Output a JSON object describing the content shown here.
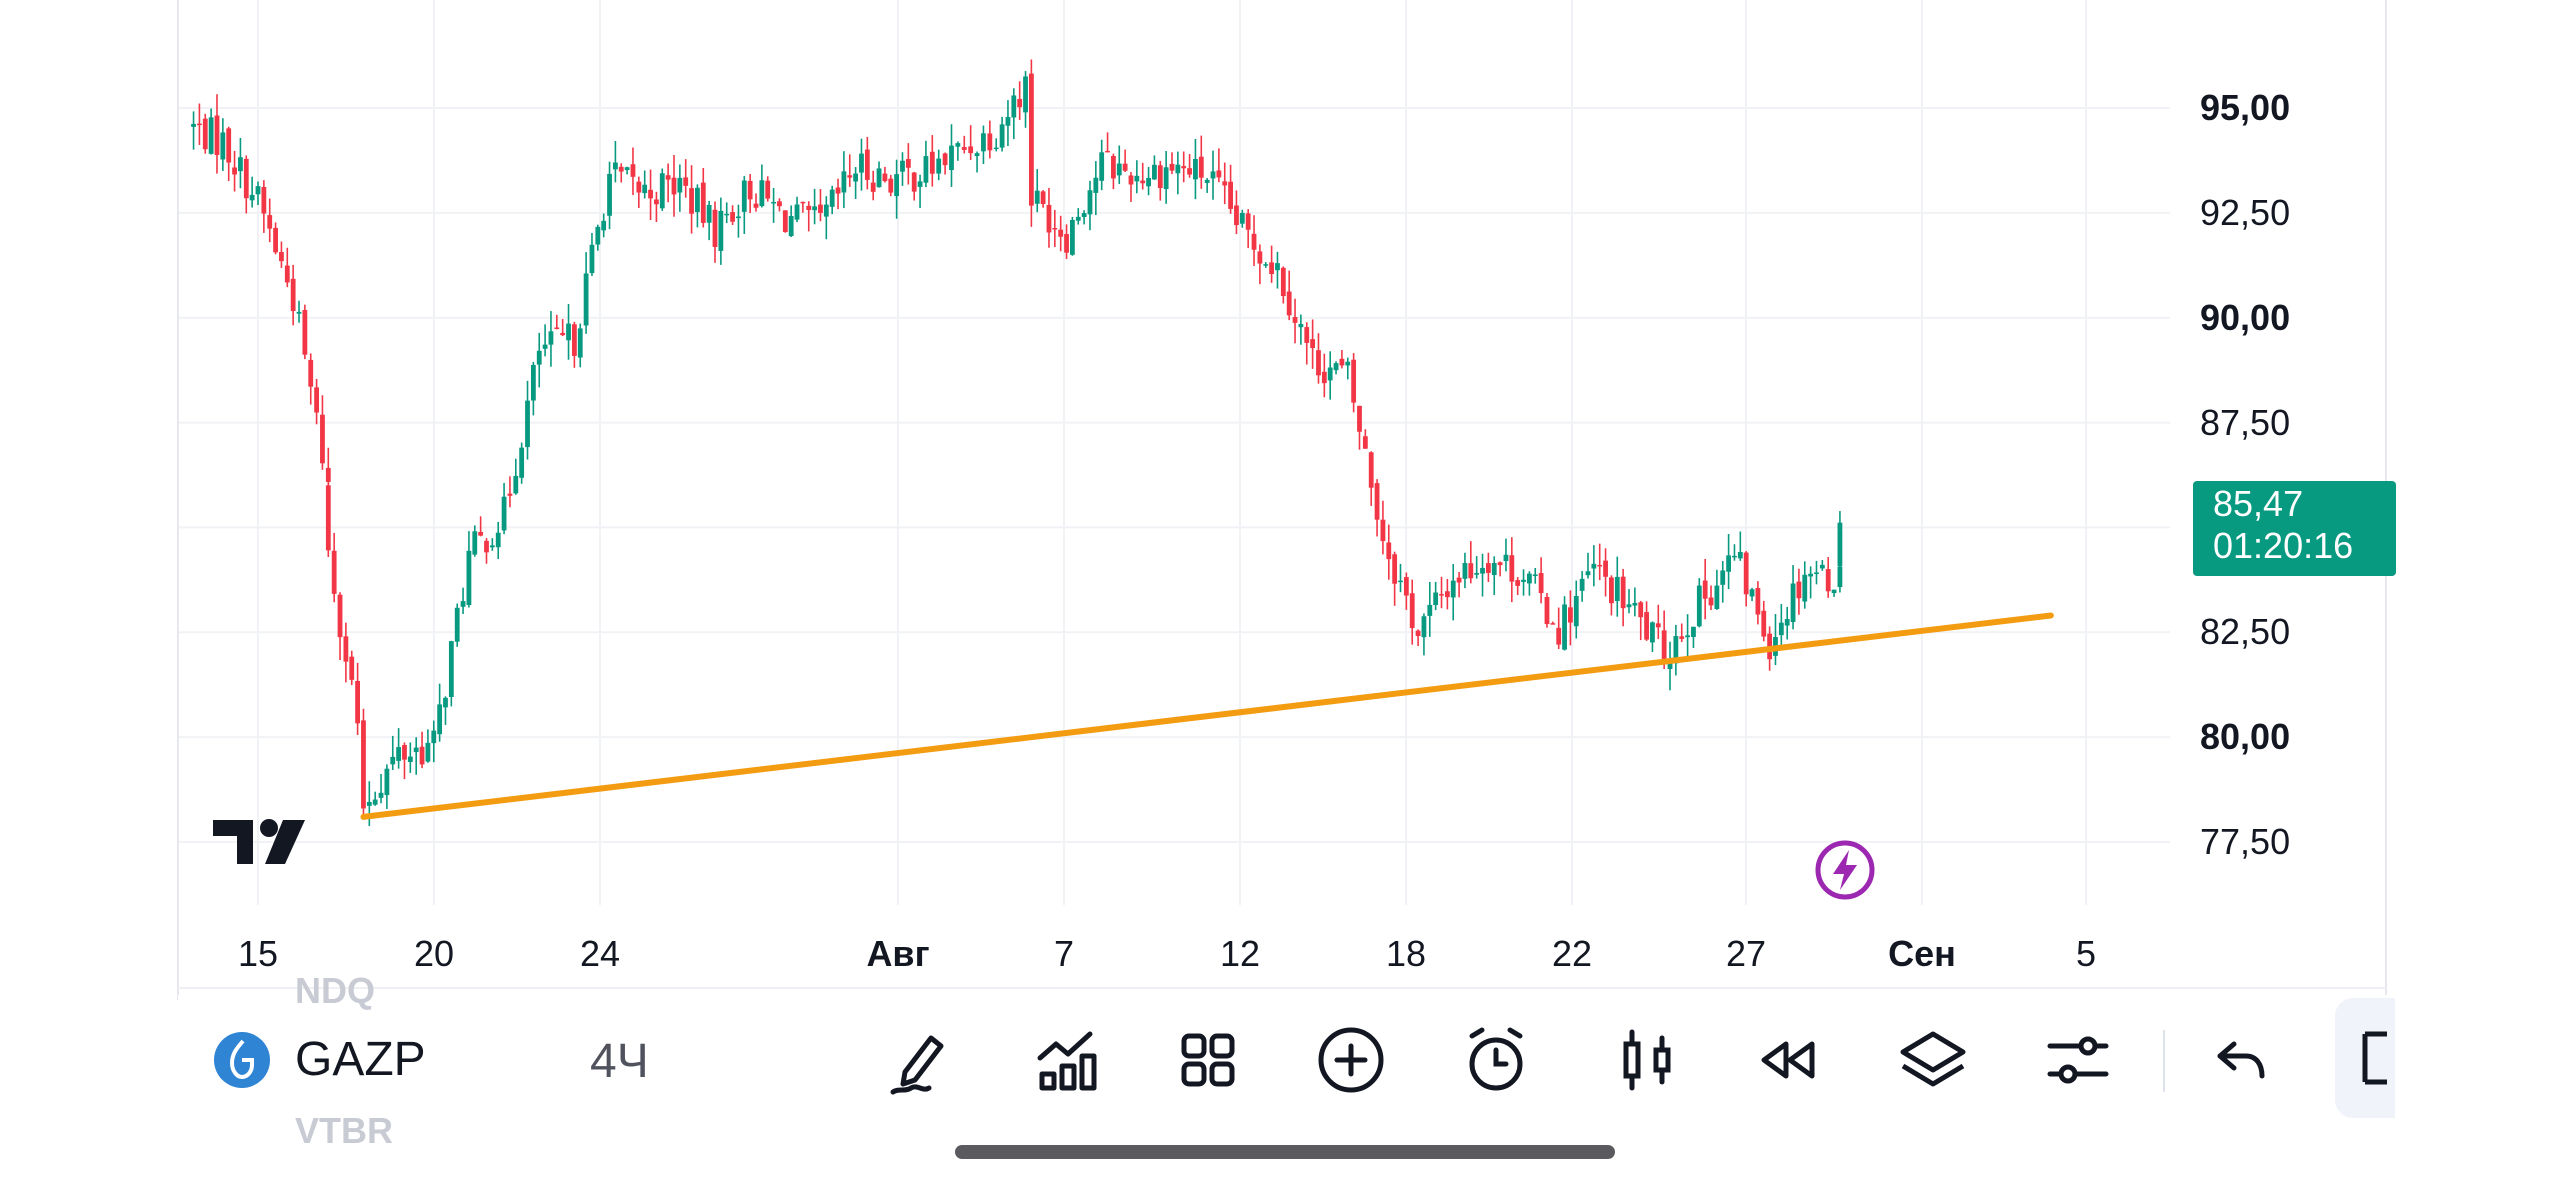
{
  "app": {
    "name": "TradingView"
  },
  "instrument": {
    "symbol": "GAZP",
    "interval": "4Ч"
  },
  "ghost_list": {
    "above": "NDQ",
    "below": "VTBR"
  },
  "price_axis": {
    "labels": [
      "95,00",
      "92,50",
      "90,00",
      "87,50",
      "82,50",
      "80,00",
      "77,50"
    ],
    "bold_labels": [
      "95,00",
      "90,00",
      "80,00"
    ]
  },
  "last_price": {
    "value": "85,47",
    "countdown": "01:20:16",
    "color": "#089981"
  },
  "time_axis": {
    "labels": [
      "15",
      "20",
      "24",
      "Авг",
      "7",
      "12",
      "18",
      "22",
      "27",
      "Сен",
      "5"
    ],
    "bold_labels": [
      "Авг",
      "Сен"
    ]
  },
  "colors": {
    "up": "#089981",
    "down": "#f23645",
    "trendline": "#f39c12",
    "accent": "#9c27b0"
  },
  "toolbar": {
    "tools": [
      "drawing-tools-icon",
      "indicators-icon",
      "templates-icon",
      "add-icon",
      "alert-icon",
      "chart-type-icon",
      "replay-icon",
      "layers-icon",
      "settings-icon",
      "undo-icon"
    ]
  },
  "chart_data": {
    "type": "candlestick",
    "title": "",
    "xlabel": "",
    "ylabel": "",
    "ylim": [
      76.0,
      96.0
    ],
    "x_ticks": [
      "15",
      "20",
      "24",
      "Авг",
      "7",
      "12",
      "18",
      "22",
      "27",
      "Сен",
      "5"
    ],
    "y_ticks": [
      77.5,
      80.0,
      82.5,
      87.5,
      90.0,
      92.5,
      95.0
    ],
    "grid": true,
    "last_price": 85.47,
    "trendline": {
      "from": {
        "x": "18 Jul",
        "y": 78.1
      },
      "to": {
        "x": "4 Sep",
        "y": 82.9
      }
    },
    "close_path": [
      [
        "13 Jul",
        94.6
      ],
      [
        "14 Jul",
        94.2
      ],
      [
        "15 Jul",
        92.8
      ],
      [
        "16 Jul",
        90.5
      ],
      [
        "17 Jul",
        86.0
      ],
      [
        "17 Jul",
        84.5
      ],
      [
        "18 Jul",
        79.5
      ],
      [
        "18 Jul",
        78.4
      ],
      [
        "19 Jul",
        79.6
      ],
      [
        "20 Jul",
        79.8
      ],
      [
        "21 Jul",
        84.3
      ],
      [
        "22 Jul",
        85.3
      ],
      [
        "23 Jul",
        89.2
      ],
      [
        "24 Jul",
        89.5
      ],
      [
        "25 Jul",
        93.4
      ],
      [
        "26 Jul",
        93.0
      ],
      [
        "27 Jul",
        93.2
      ],
      [
        "28 Jul",
        92.1
      ],
      [
        "29 Jul",
        93.1
      ],
      [
        "30 Jul",
        92.4
      ],
      [
        "31 Jul",
        92.2
      ],
      [
        "1 Aug",
        93.6
      ],
      [
        "2 Aug",
        93.3
      ],
      [
        "3 Aug",
        93.5
      ],
      [
        "5 Aug",
        94.5
      ],
      [
        "6 Aug",
        95.8
      ],
      [
        "6 Aug",
        92.9
      ],
      [
        "7 Aug",
        92.0
      ],
      [
        "8 Aug",
        93.7
      ],
      [
        "9 Aug",
        93.4
      ],
      [
        "10 Aug",
        93.6
      ],
      [
        "11 Aug",
        93.4
      ],
      [
        "12 Aug",
        92.1
      ],
      [
        "13 Aug",
        91.2
      ],
      [
        "14 Aug",
        89.0
      ],
      [
        "15 Aug",
        88.6
      ],
      [
        "16 Aug",
        84.8
      ],
      [
        "17 Aug",
        82.5
      ],
      [
        "18 Aug",
        83.8
      ],
      [
        "19 Aug",
        84.3
      ],
      [
        "20 Aug",
        83.9
      ],
      [
        "21 Aug",
        82.6
      ],
      [
        "22 Aug",
        84.0
      ],
      [
        "23 Aug",
        83.1
      ],
      [
        "24 Aug",
        82.0
      ],
      [
        "25 Aug",
        83.2
      ],
      [
        "26 Aug",
        84.3
      ],
      [
        "27 Aug",
        82.3
      ],
      [
        "28 Aug",
        84.0
      ],
      [
        "29 Aug",
        83.8
      ],
      [
        "29 Aug",
        85.47
      ]
    ]
  }
}
